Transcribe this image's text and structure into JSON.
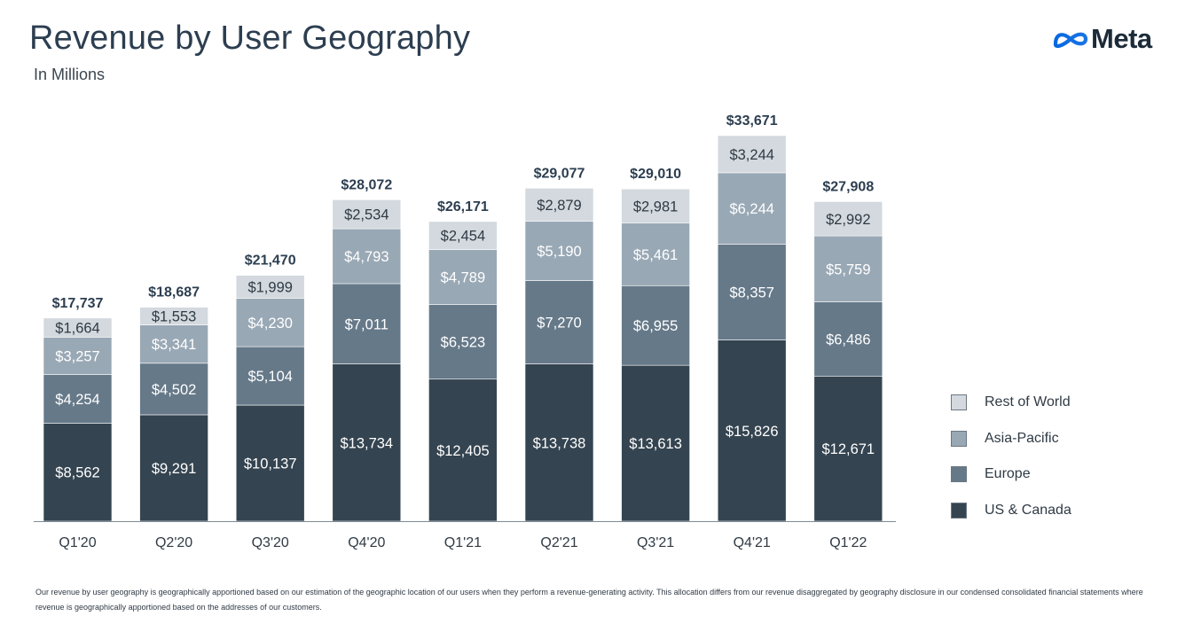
{
  "header": {
    "title": "Revenue by User Geography",
    "subtitle": "In Millions",
    "logo_text": "Meta",
    "logo_icon": "meta-infinity-logo"
  },
  "colors": {
    "us_canada": "#344450",
    "europe": "#667989",
    "asia_pacific": "#99a8b5",
    "rest_of_world": "#d3d9de",
    "axis": "#7f8b95",
    "text_dark": "#2c3e50",
    "logo_blue": "#1877f2"
  },
  "chart_data": {
    "type": "bar",
    "stacked": true,
    "title": "Revenue by User Geography",
    "subtitle": "In Millions",
    "xlabel": "",
    "ylabel": "",
    "categories": [
      "Q1'20",
      "Q2'20",
      "Q3'20",
      "Q4'20",
      "Q1'21",
      "Q2'21",
      "Q3'21",
      "Q4'21",
      "Q1'22"
    ],
    "series": [
      {
        "name": "US & Canada",
        "values": [
          8562,
          9291,
          10137,
          13734,
          12405,
          13738,
          13613,
          15826,
          12671
        ],
        "labels": [
          "$8,562",
          "$9,291",
          "$10,137",
          "$13,734",
          "$12,405",
          "$13,738",
          "$13,613",
          "$15,826",
          "$12,671"
        ]
      },
      {
        "name": "Europe",
        "values": [
          4254,
          4502,
          5104,
          7011,
          6523,
          7270,
          6955,
          8357,
          6486
        ],
        "labels": [
          "$4,254",
          "$4,502",
          "$5,104",
          "$7,011",
          "$6,523",
          "$7,270",
          "$6,955",
          "$8,357",
          "$6,486"
        ]
      },
      {
        "name": "Asia-Pacific",
        "values": [
          3257,
          3341,
          4230,
          4793,
          4789,
          5190,
          5461,
          6244,
          5759
        ],
        "labels": [
          "$3,257",
          "$3,341",
          "$4,230",
          "$4,793",
          "$4,789",
          "$5,190",
          "$5,461",
          "$6,244",
          "$5,759"
        ]
      },
      {
        "name": "Rest of World",
        "values": [
          1664,
          1553,
          1999,
          2534,
          2454,
          2879,
          2981,
          3244,
          2992
        ],
        "labels": [
          "$1,664",
          "$1,553",
          "$1,999",
          "$2,534",
          "$2,454",
          "$2,879",
          "$2,981",
          "$3,244",
          "$2,992"
        ]
      }
    ],
    "totals": [
      17737,
      18687,
      21470,
      28072,
      26171,
      29077,
      29010,
      33671,
      27908
    ],
    "total_labels": [
      "$17,737",
      "$18,687",
      "$21,470",
      "$28,072",
      "$26,171",
      "$29,077",
      "$29,010",
      "$33,671",
      "$27,908"
    ],
    "ylim": [
      0,
      33671
    ],
    "grid": false,
    "legend": {
      "position": "right",
      "order": [
        "Rest of World",
        "Asia-Pacific",
        "Europe",
        "US & Canada"
      ]
    }
  },
  "footnote": "Our revenue by user geography is geographically apportioned based on our estimation of the geographic location of our users when they perform a revenue-generating activity. This allocation differs from our revenue disaggregated by geography disclosure in our condensed consolidated financial statements where revenue is geographically apportioned based on the addresses of our customers."
}
